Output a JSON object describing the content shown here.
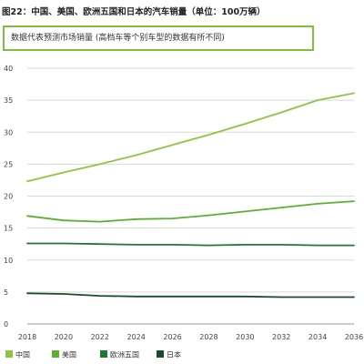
{
  "chart_data": {
    "type": "line",
    "title": "图22：中国、美国、欧洲五国和日本的汽车销量（单位：100万辆）",
    "note": "数据代表预测市场销量 (高档车等个别车型的数据有所不同)",
    "xlabel": "",
    "ylabel": "",
    "x": [
      2018,
      2020,
      2022,
      2024,
      2026,
      2028,
      2030,
      2032,
      2034,
      2036
    ],
    "ylim": [
      0,
      40
    ],
    "yticks": [
      0,
      5,
      10,
      15,
      20,
      25,
      30,
      35,
      40
    ],
    "grid": "horizontal",
    "legend_position": "bottom-left",
    "series": [
      {
        "name": "中国",
        "color": "#8cc63f",
        "values": [
          22.3,
          23.7,
          25.0,
          26.4,
          28.0,
          29.6,
          31.3,
          33.1,
          35.0,
          36.1
        ]
      },
      {
        "name": "美国",
        "color": "#5cb030",
        "values": [
          16.9,
          16.2,
          16.0,
          16.4,
          16.5,
          17.0,
          17.6,
          18.2,
          18.8,
          19.2
        ]
      },
      {
        "name": "欧洲五国",
        "color": "#1e7a2e",
        "values": [
          12.6,
          12.6,
          12.5,
          12.4,
          12.4,
          12.3,
          12.4,
          12.4,
          12.3,
          12.3
        ]
      },
      {
        "name": "日本",
        "color": "#1b4d2b",
        "values": [
          4.8,
          4.7,
          4.4,
          4.3,
          4.3,
          4.3,
          4.3,
          4.2,
          4.2,
          4.2
        ]
      }
    ]
  }
}
